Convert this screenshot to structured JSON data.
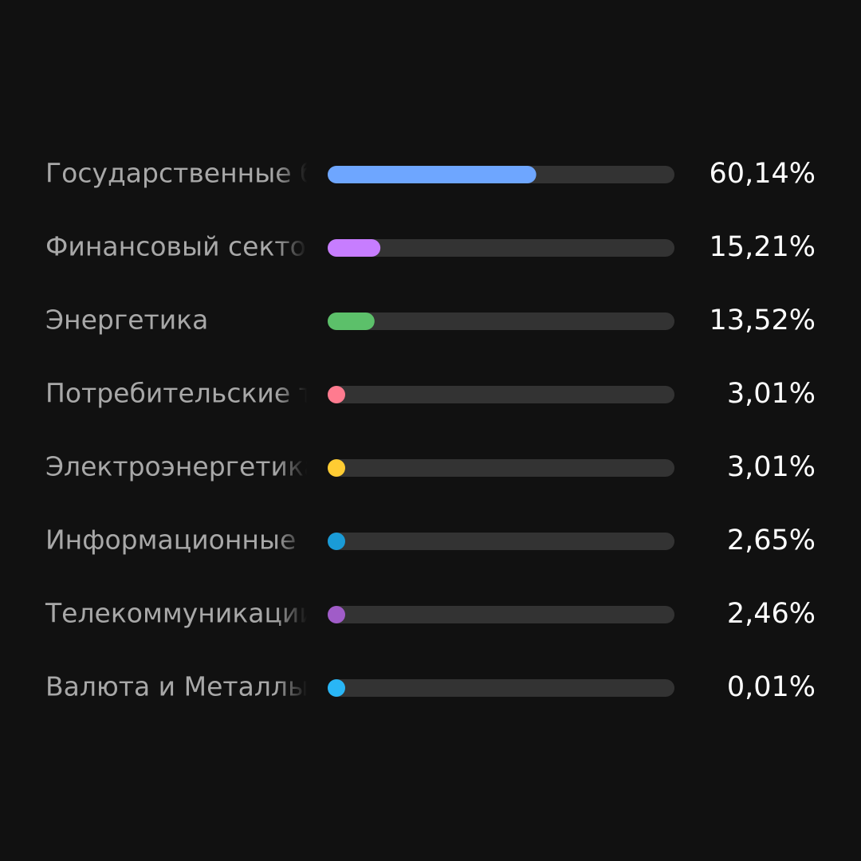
{
  "chart_data": {
    "type": "hbar",
    "categories": [
      "Государственные б",
      "Финансовый сектор",
      "Энергетика",
      "Потребительские т",
      "Электроэнергетика",
      "Информационные",
      "Телекоммуникации",
      "Валюта и Металлы"
    ],
    "values": [
      60.14,
      15.21,
      13.52,
      3.01,
      3.01,
      2.65,
      2.46,
      0.01
    ],
    "value_labels": [
      "60,14%",
      "15,21%",
      "13,52%",
      "3,01%",
      "3,01%",
      "2,65%",
      "2,46%",
      "0,01%"
    ],
    "colors": [
      "#6ea6ff",
      "#c77dff",
      "#5cc06a",
      "#ff7b8f",
      "#ffcc33",
      "#1a9bd7",
      "#a05cc8",
      "#29b6f6"
    ],
    "xlim": [
      0,
      100
    ]
  }
}
